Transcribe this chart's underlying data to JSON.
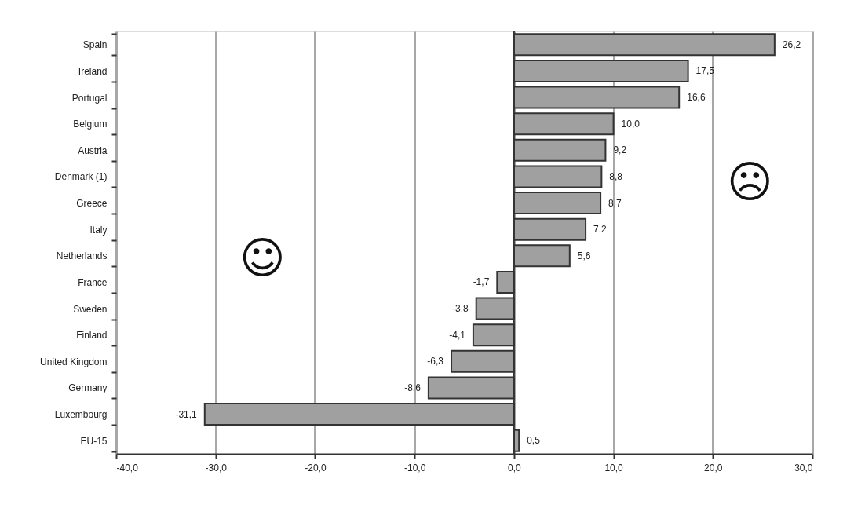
{
  "chart_data": {
    "type": "bar",
    "orientation": "horizontal",
    "categories": [
      "Spain",
      "Ireland",
      "Portugal",
      "Belgium",
      "Austria",
      "Denmark (1)",
      "Greece",
      "Italy",
      "Netherlands",
      "France",
      "Sweden",
      "Finland",
      "United Kingdom",
      "Germany",
      "Luxembourg",
      "EU-15"
    ],
    "values": [
      26.2,
      17.5,
      16.6,
      10.0,
      9.2,
      8.8,
      8.7,
      7.2,
      5.6,
      -1.7,
      -3.8,
      -4.1,
      -6.3,
      -8.6,
      -31.1,
      0.5
    ],
    "value_labels": [
      "26,2",
      "17,5",
      "16,6",
      "10,0",
      "9,2",
      "8,8",
      "8,7",
      "7,2",
      "5,6",
      "-1,7",
      "-3,8",
      "-4,1",
      "-6,3",
      "-8,6",
      "-31,1",
      "0,5"
    ],
    "color": "#a0a0a0",
    "xlim": [
      -40,
      30
    ],
    "xticks": [
      {
        "value": -40,
        "label": "-40,0"
      },
      {
        "value": -30,
        "label": "-30,0"
      },
      {
        "value": -20,
        "label": "-20,0"
      },
      {
        "value": -10,
        "label": "-10,0"
      },
      {
        "value": 0,
        "label": "0,0"
      },
      {
        "value": 10,
        "label": "10,0"
      },
      {
        "value": 20,
        "label": "20,0"
      },
      {
        "value": 30,
        "label": "30,0"
      }
    ],
    "grid": "x",
    "ref_lines": [
      {
        "axis": "x",
        "value": 0,
        "color": "#333333"
      }
    ],
    "annotations": [
      "☺",
      "☹"
    ]
  }
}
